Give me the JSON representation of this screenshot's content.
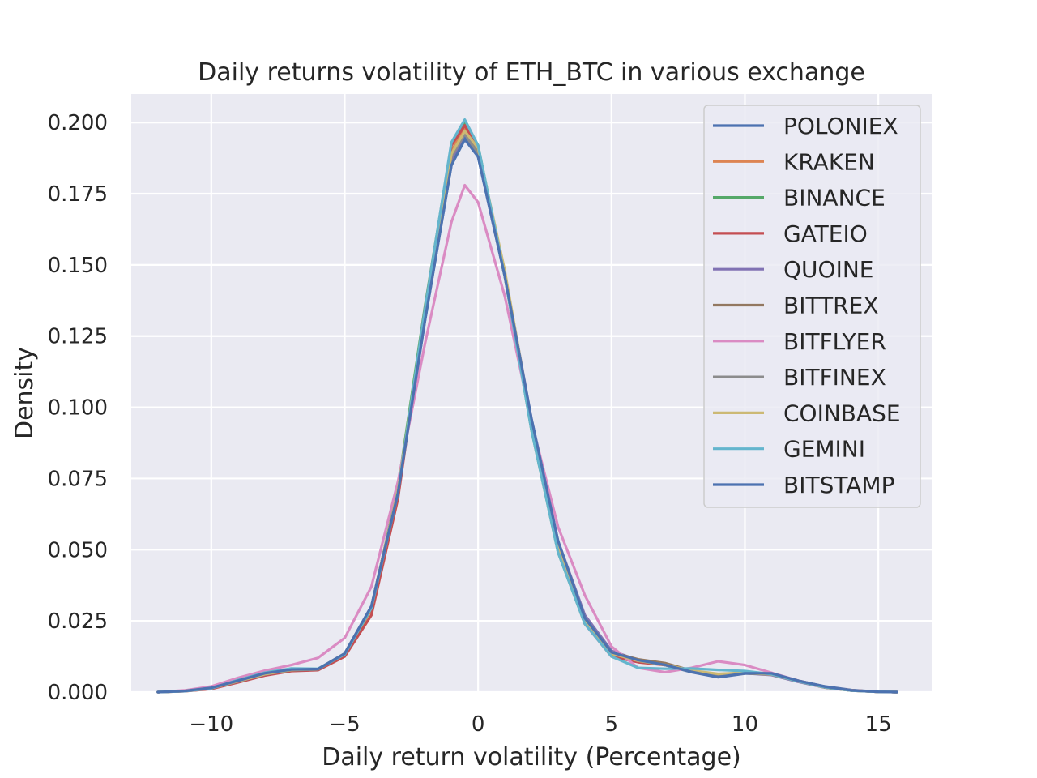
{
  "chart_data": {
    "type": "line",
    "title": "Daily returns volatility of ETH_BTC in various exchange",
    "xlabel": "Daily return volatility (Percentage)",
    "ylabel": "Density",
    "xlim": [
      -13,
      17
    ],
    "ylim": [
      0,
      0.21
    ],
    "x_ticks": [
      -10,
      -5,
      0,
      5,
      10,
      15
    ],
    "x_tick_labels": [
      "−10",
      "−5",
      "0",
      "5",
      "10",
      "15"
    ],
    "y_ticks": [
      0,
      0.025,
      0.05,
      0.075,
      0.1,
      0.125,
      0.15,
      0.175,
      0.2
    ],
    "y_tick_labels": [
      "0.000",
      "0.025",
      "0.050",
      "0.075",
      "0.100",
      "0.125",
      "0.150",
      "0.175",
      "0.200"
    ],
    "grid": true,
    "legend_position": "top-right",
    "series": [
      {
        "name": "POLONIEX",
        "color": "#4c72b0",
        "x": [
          -12,
          -11,
          -10,
          -9,
          -8,
          -7,
          -6,
          -5,
          -4,
          -3,
          -2,
          -1,
          -0.5,
          0,
          1,
          2,
          3,
          4,
          5,
          6,
          7,
          8,
          9,
          10,
          11,
          12,
          13,
          14,
          15,
          15.7
        ],
        "y": [
          0,
          0.0004,
          0.0015,
          0.004,
          0.0065,
          0.0078,
          0.008,
          0.0135,
          0.03,
          0.07,
          0.13,
          0.185,
          0.195,
          0.188,
          0.146,
          0.095,
          0.052,
          0.026,
          0.014,
          0.011,
          0.0095,
          0.007,
          0.0052,
          0.0065,
          0.0065,
          0.004,
          0.002,
          0.0007,
          0.0001,
          0
        ]
      },
      {
        "name": "KRAKEN",
        "color": "#dd8452",
        "x": [
          -12,
          -11,
          -10,
          -9,
          -8,
          -7,
          -6,
          -5,
          -4,
          -3,
          -2,
          -1,
          -0.5,
          0,
          1,
          2,
          3,
          4,
          5,
          6,
          7,
          8,
          9,
          10,
          11,
          12,
          13,
          14,
          15,
          15.7
        ],
        "y": [
          0,
          0.0003,
          0.0012,
          0.0036,
          0.006,
          0.0075,
          0.0078,
          0.013,
          0.029,
          0.071,
          0.133,
          0.19,
          0.198,
          0.19,
          0.146,
          0.093,
          0.05,
          0.024,
          0.013,
          0.011,
          0.0098,
          0.0075,
          0.0058,
          0.007,
          0.0065,
          0.004,
          0.0018,
          0.0006,
          0.0001,
          0
        ]
      },
      {
        "name": "BINANCE",
        "color": "#55a868",
        "x": [
          -12,
          -11,
          -10,
          -9,
          -8,
          -7,
          -6,
          -5,
          -4,
          -3,
          -2,
          -1,
          -0.5,
          0,
          1,
          2,
          3,
          4,
          5,
          6,
          7,
          8,
          9,
          10,
          11,
          12,
          13,
          14,
          15,
          15.7
        ],
        "y": [
          0,
          0.0004,
          0.0014,
          0.0038,
          0.0062,
          0.0077,
          0.0079,
          0.0132,
          0.0295,
          0.072,
          0.135,
          0.192,
          0.2,
          0.192,
          0.146,
          0.092,
          0.049,
          0.024,
          0.013,
          0.0108,
          0.0096,
          0.0074,
          0.0056,
          0.0068,
          0.0064,
          0.004,
          0.0018,
          0.0006,
          0.0001,
          0
        ]
      },
      {
        "name": "GATEIO",
        "color": "#c44e52",
        "x": [
          -12,
          -11,
          -10,
          -9,
          -8,
          -7,
          -6,
          -5,
          -4,
          -3,
          -2,
          -1,
          -0.5,
          0,
          1,
          2,
          3,
          4,
          5,
          6,
          7,
          8,
          9,
          10,
          11,
          12,
          13,
          14,
          15,
          15.7
        ],
        "y": [
          0,
          0.0003,
          0.0011,
          0.0034,
          0.0058,
          0.0074,
          0.0077,
          0.0125,
          0.027,
          0.068,
          0.134,
          0.192,
          0.199,
          0.191,
          0.147,
          0.094,
          0.05,
          0.024,
          0.0125,
          0.0105,
          0.0095,
          0.0073,
          0.0055,
          0.0067,
          0.0064,
          0.004,
          0.0018,
          0.0006,
          0.0001,
          0
        ]
      },
      {
        "name": "QUOINE",
        "color": "#8172b3",
        "x": [
          -12,
          -11,
          -10,
          -9,
          -8,
          -7,
          -6,
          -5,
          -4,
          -3,
          -2,
          -1,
          -0.5,
          0,
          1,
          2,
          3,
          4,
          5,
          6,
          7,
          8,
          9,
          10,
          11,
          12,
          13,
          14,
          15,
          15.7
        ],
        "y": [
          0,
          0.0004,
          0.0014,
          0.0037,
          0.0062,
          0.0077,
          0.008,
          0.0135,
          0.03,
          0.071,
          0.132,
          0.187,
          0.196,
          0.189,
          0.147,
          0.096,
          0.053,
          0.027,
          0.0145,
          0.0112,
          0.0097,
          0.0072,
          0.0055,
          0.0066,
          0.006,
          0.0036,
          0.0016,
          0.0005,
          0.0001,
          0
        ]
      },
      {
        "name": "BITTREX",
        "color": "#937860",
        "x": [
          -12,
          -11,
          -10,
          -9,
          -8,
          -7,
          -6,
          -5,
          -4,
          -3,
          -2,
          -1,
          -0.5,
          0,
          1,
          2,
          3,
          4,
          5,
          6,
          7,
          8,
          9,
          10,
          11,
          12,
          13,
          14,
          15,
          15.7
        ],
        "y": [
          0,
          0.0004,
          0.0014,
          0.0038,
          0.0063,
          0.0077,
          0.008,
          0.0134,
          0.0298,
          0.071,
          0.132,
          0.188,
          0.197,
          0.19,
          0.147,
          0.095,
          0.052,
          0.026,
          0.014,
          0.0115,
          0.0102,
          0.0075,
          0.0056,
          0.0066,
          0.0062,
          0.0038,
          0.0016,
          0.0005,
          0.0001,
          0
        ]
      },
      {
        "name": "BITFLYER",
        "color": "#da8bc3",
        "x": [
          -12,
          -11,
          -10,
          -9,
          -8,
          -7,
          -6,
          -5,
          -4,
          -3,
          -2,
          -1,
          -0.5,
          0,
          1,
          2,
          3,
          4,
          5,
          6,
          7,
          8,
          9,
          10,
          11,
          12,
          13,
          14,
          15,
          15.7
        ],
        "y": [
          0,
          0.0006,
          0.002,
          0.005,
          0.0075,
          0.0095,
          0.012,
          0.019,
          0.037,
          0.074,
          0.122,
          0.165,
          0.178,
          0.172,
          0.139,
          0.095,
          0.058,
          0.034,
          0.016,
          0.0085,
          0.007,
          0.0085,
          0.0108,
          0.0095,
          0.0068,
          0.004,
          0.0018,
          0.0006,
          0.0001,
          0
        ]
      },
      {
        "name": "BITFINEX",
        "color": "#8c8c8c",
        "x": [
          -12,
          -11,
          -10,
          -9,
          -8,
          -7,
          -6,
          -5,
          -4,
          -3,
          -2,
          -1,
          -0.5,
          0,
          1,
          2,
          3,
          4,
          5,
          6,
          7,
          8,
          9,
          10,
          11,
          12,
          13,
          14,
          15,
          15.7
        ],
        "y": [
          0,
          0.0004,
          0.0014,
          0.0038,
          0.0063,
          0.0078,
          0.008,
          0.0135,
          0.03,
          0.071,
          0.132,
          0.188,
          0.196,
          0.189,
          0.146,
          0.095,
          0.052,
          0.026,
          0.014,
          0.011,
          0.0095,
          0.0071,
          0.0054,
          0.0066,
          0.0063,
          0.0038,
          0.0017,
          0.0005,
          0.0001,
          0
        ]
      },
      {
        "name": "COINBASE",
        "color": "#ccb974",
        "x": [
          -12,
          -11,
          -10,
          -9,
          -8,
          -7,
          -6,
          -5,
          -4,
          -3,
          -2,
          -1,
          -0.5,
          0,
          1,
          2,
          3,
          4,
          5,
          6,
          7,
          8,
          9,
          10,
          11,
          12,
          13,
          14,
          15,
          15.7
        ],
        "y": [
          0,
          0.0004,
          0.0014,
          0.0038,
          0.0063,
          0.0078,
          0.0081,
          0.0136,
          0.03,
          0.071,
          0.133,
          0.189,
          0.197,
          0.191,
          0.148,
          0.095,
          0.051,
          0.025,
          0.0135,
          0.011,
          0.0096,
          0.0076,
          0.0064,
          0.0068,
          0.0062,
          0.0038,
          0.0017,
          0.0005,
          0.0001,
          0
        ]
      },
      {
        "name": "GEMINI",
        "color": "#64b5cd",
        "x": [
          -12,
          -11,
          -10,
          -9,
          -8,
          -7,
          -6,
          -5,
          -4,
          -3,
          -2,
          -1,
          -0.5,
          0,
          1,
          2,
          3,
          4,
          5,
          6,
          7,
          8,
          9,
          10,
          11,
          12,
          13,
          14,
          15,
          15.7
        ],
        "y": [
          0,
          0.0003,
          0.0013,
          0.0042,
          0.0068,
          0.0083,
          0.0082,
          0.0133,
          0.0295,
          0.07,
          0.134,
          0.193,
          0.201,
          0.192,
          0.146,
          0.092,
          0.049,
          0.024,
          0.0125,
          0.0085,
          0.0082,
          0.0083,
          0.0078,
          0.0074,
          0.0063,
          0.0038,
          0.0017,
          0.0005,
          0.0001,
          0
        ]
      },
      {
        "name": "BITSTAMP",
        "color": "#4c72b0",
        "x": [
          -12,
          -11,
          -10,
          -9,
          -8,
          -7,
          -6,
          -5,
          -4,
          -3,
          -2,
          -1,
          -0.5,
          0,
          1,
          2,
          3,
          4,
          5,
          6,
          7,
          8,
          9,
          10,
          11,
          12,
          13,
          14,
          15,
          15.7
        ],
        "y": [
          0,
          0.0004,
          0.0015,
          0.004,
          0.0066,
          0.0079,
          0.0081,
          0.0136,
          0.0302,
          0.07,
          0.13,
          0.185,
          0.194,
          0.188,
          0.146,
          0.096,
          0.053,
          0.026,
          0.014,
          0.0112,
          0.0096,
          0.0071,
          0.0053,
          0.0066,
          0.0066,
          0.004,
          0.0019,
          0.0006,
          0.0001,
          0
        ]
      }
    ]
  }
}
